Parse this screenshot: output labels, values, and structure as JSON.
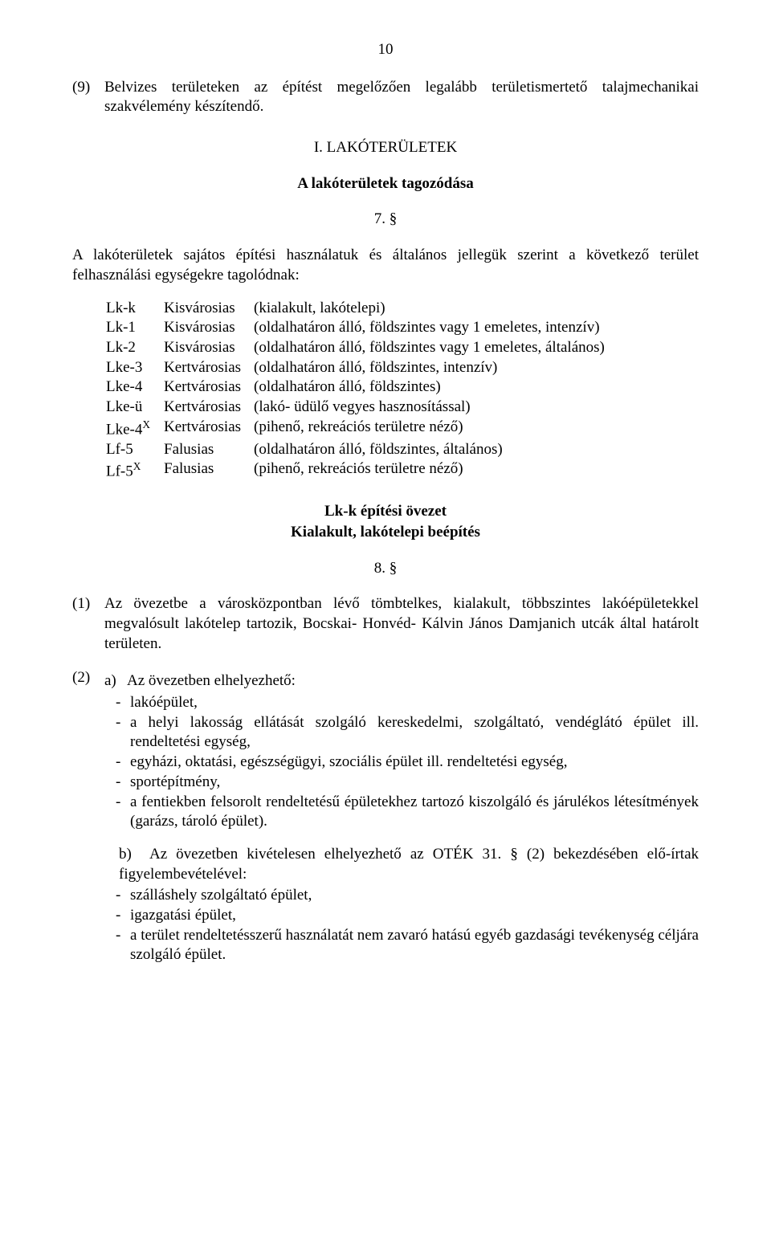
{
  "page_number": "10",
  "para9": {
    "prefix": "(9)",
    "text": "Belvizes területeken az építést megelőzően legalább területismertető talajmechanikai szakvélemény készítendő."
  },
  "chapter": "I. LAKÓTERÜLETEK",
  "section_title_1": "A lakóterületek tagozódása",
  "section_no_1": "7. §",
  "intro_1": "A lakóterületek sajátos építési használatuk és általános jellegük szerint a következő terület felhasználási egységekre tagolódnak:",
  "zones": [
    {
      "code": "Lk-k",
      "type": "Kisvárosias",
      "desc": "(kialakult, lakótelepi)"
    },
    {
      "code": "Lk-1",
      "type": "Kisvárosias",
      "desc": "(oldalhatáron álló, földszintes vagy 1 emeletes, intenzív)"
    },
    {
      "code": "Lk-2",
      "type": "Kisvárosias",
      "desc": "(oldalhatáron álló, földszintes vagy 1 emeletes, általános)"
    },
    {
      "code": "Lke-3",
      "type": "Kertvárosias",
      "desc": "(oldalhatáron álló, földszintes, intenzív)"
    },
    {
      "code": "Lke-4",
      "type": "Kertvárosias",
      "desc": "(oldalhatáron álló, földszintes)"
    },
    {
      "code": "Lke-ü",
      "type": "Kertvárosias",
      "desc": "(lakó- üdülő vegyes hasznosítással)"
    },
    {
      "code_pre": "Lke-4",
      "code_sup": "X",
      "type": "Kertvárosias",
      "desc": "(pihenő, rekreációs területre néző)"
    },
    {
      "code": "Lf-5",
      "type": "Falusias",
      "desc": "(oldalhatáron álló, földszintes, általános)"
    },
    {
      "code_pre": "Lf-5",
      "code_sup": "X",
      "type": "Falusias",
      "desc": "(pihenő, rekreációs területre néző)"
    }
  ],
  "sub_title_line1": "Lk-k  építési övezet",
  "sub_title_line2": "Kialakult, lakótelepi beépítés",
  "section_no_2": "8. §",
  "para_1": {
    "prefix": "(1)",
    "text": "Az övezetbe a városközpontban lévő tömbtelkes, kialakult, többszintes lakóépületekkel megvalósult lakótelep tartozik, Bocskai- Honvéd- Kálvin János Damjanich utcák által határolt területen."
  },
  "para_2_prefix": "(2)",
  "para_2a_prefix": "a)",
  "para_2a_intro": "Az övezetben elhelyezhető:",
  "list_a": [
    "lakóépület,",
    "a helyi lakosság ellátását szolgáló kereskedelmi, szolgáltató, vendéglátó épület ill. rendeltetési egység,",
    "egyházi, oktatási, egészségügyi, szociális épület ill. rendeltetési egység,",
    "sportépítmény,",
    "a fentiekben felsorolt rendeltetésű épületekhez tartozó kiszolgáló és járulékos létesítmények (garázs, tároló épület)."
  ],
  "para_2b_prefix": "b)",
  "para_2b_intro": "Az övezetben kivételesen elhelyezhető az OTÉK 31. § (2) bekezdésében elő-írtak figyelembevételével:",
  "list_b": [
    "szálláshely szolgáltató épület,",
    "igazgatási épület,",
    "a terület rendeltetésszerű használatát nem zavaró hatású egyéb gazdasági tevékenység céljára szolgáló épület."
  ],
  "dash": "-"
}
